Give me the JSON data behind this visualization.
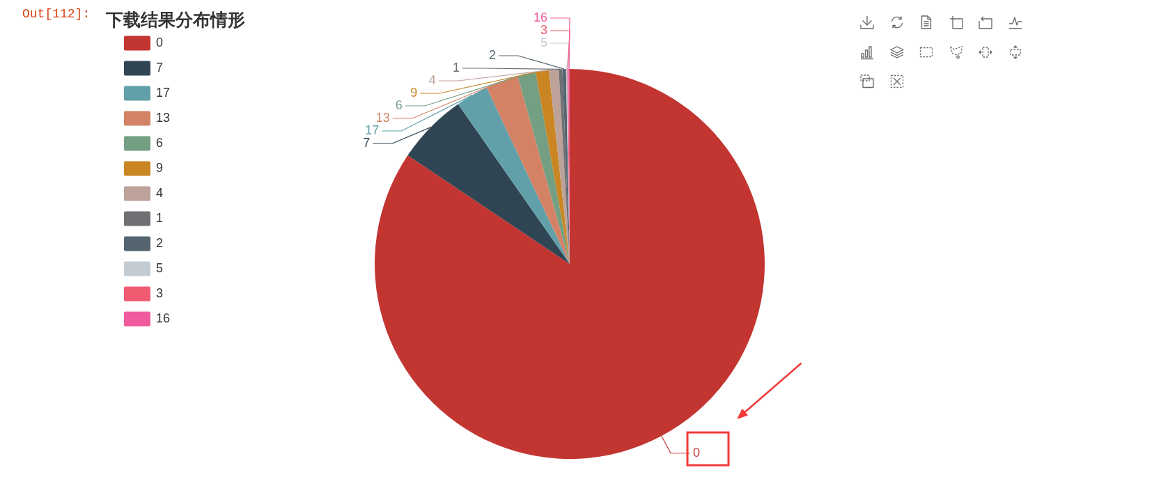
{
  "chart_data": {
    "type": "pie",
    "title": "下载结果分布情形",
    "categories": [
      "0",
      "7",
      "17",
      "13",
      "6",
      "9",
      "4",
      "1",
      "2",
      "5",
      "3",
      "16"
    ],
    "values": [
      84.4,
      5.9,
      2.7,
      2.7,
      1.5,
      1.1,
      0.8,
      0.3,
      0.3,
      0.1,
      0.1,
      0.1
    ],
    "colors": [
      "#c23531",
      "#2f4554",
      "#61a0a8",
      "#d48265",
      "#749f83",
      "#ca8622",
      "#bda29a",
      "#6e7074",
      "#546570",
      "#c4ccd3",
      "#f05b72",
      "#ef5b9c"
    ],
    "legend": "top left",
    "annotations": [
      "Out[112]:"
    ]
  }
}
